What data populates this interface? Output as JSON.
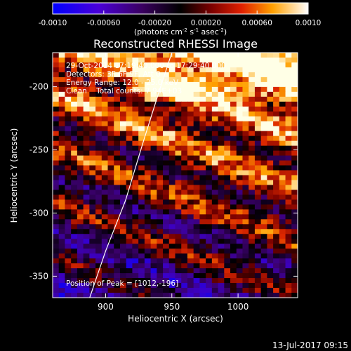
{
  "chart_data": {
    "type": "heatmap",
    "title": "Reconstructed RHESSI Image",
    "xlabel": "Heliocentric X (arcsec)",
    "ylabel": "Heliocentric Y (arcsec)",
    "xlim": [
      860,
      1045
    ],
    "ylim": [
      -367,
      -173
    ],
    "x_ticks": [
      "900",
      "950",
      "1000"
    ],
    "y_ticks": [
      "-200",
      "-250",
      "-300",
      "-350"
    ],
    "colorbar": {
      "range": [
        -0.001,
        0.001
      ],
      "ticks": [
        "-0.0010",
        "-0.00060",
        "-0.00020",
        "0.00020",
        "0.00060",
        "0.0010"
      ],
      "unit_label": "(photons cm",
      "unit_exp1": "-2",
      "unit_mid": " s",
      "unit_exp2": "-1",
      "unit_mid2": " asec",
      "unit_exp3": "-2",
      "unit_end": ")"
    },
    "annotations": [
      "29-Oct-2014 17:19:40.000 to 17:29:40.000",
      "Detectors: 3F 6F 9F, Att 0",
      "Energy Range: 12.0 - 25.0 keV",
      "Clean    Total counts: 7.94E+03"
    ],
    "peak_label": "Position of Peak = [1012,-196]",
    "limb_curve": [
      [
        888,
        -367
      ],
      [
        900,
        -330
      ],
      [
        915,
        -290
      ],
      [
        928,
        -245
      ],
      [
        940,
        -205
      ],
      [
        950,
        -173
      ]
    ],
    "grid": false
  },
  "footer": {
    "timestamp": "13-Jul-2017 09:15"
  }
}
